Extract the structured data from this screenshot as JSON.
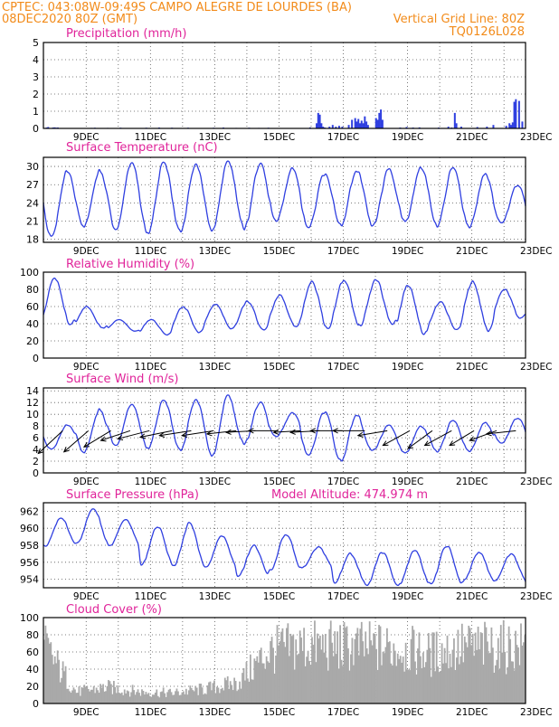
{
  "header": {
    "line1_left": "CPTEC:  043:08W-09:49S  CAMPO ALEGRE DE LOURDES (BA)",
    "line2_left": "08DEC2020 80Z (GMT)",
    "line2_right": "Vertical Grid Line: 80Z",
    "line3_right": "TQ0126L028"
  },
  "colors": {
    "header": "#f28b1a",
    "title": "#e0249a",
    "line": "#2f3fe0",
    "cloud": "#a9a9a9"
  },
  "x_ticks": [
    "9DEC",
    "11DEC",
    "13DEC",
    "15DEC",
    "17DEC",
    "19DEC",
    "21DEC",
    "23DEC"
  ],
  "chart_data": [
    {
      "type": "bar",
      "title": "Precipitation (mm/h)",
      "ylim": [
        0,
        5
      ],
      "yticks": [
        0,
        1,
        2,
        3,
        4,
        5
      ],
      "x_unit": "days since 08DEC2020 00Z",
      "x": [
        8.1,
        8.15,
        8.3,
        8.35,
        8.4,
        8.45,
        9.5,
        9.6,
        10.0,
        10.4,
        11.2,
        11.6,
        12.0,
        12.5,
        13.3,
        13.6,
        14.0,
        14.4,
        14.7,
        15.0,
        16.3,
        16.5,
        16.55,
        16.6,
        16.65,
        16.7,
        16.75,
        16.9,
        17.0,
        17.1,
        17.2,
        17.3,
        17.5,
        17.6,
        17.7,
        17.75,
        17.8,
        17.85,
        17.9,
        17.95,
        18.0,
        18.05,
        18.1,
        18.35,
        18.4,
        18.45,
        18.5,
        18.55,
        19.1,
        19.3,
        19.5,
        19.7,
        20.3,
        20.6,
        20.7,
        20.8,
        20.85,
        21.0,
        21.5,
        21.8,
        22.0,
        22.4,
        22.5,
        22.55,
        22.6,
        22.65,
        22.7,
        22.8,
        22.9
      ],
      "values": [
        0.05,
        0.08,
        0.05,
        0.06,
        0.04,
        0.05,
        0.03,
        0.04,
        0.03,
        0.04,
        0.04,
        0.05,
        0.04,
        0.04,
        0.04,
        0.05,
        0.03,
        0.04,
        0.03,
        0.04,
        0.06,
        0.3,
        0.9,
        0.8,
        0.3,
        0.1,
        0.05,
        0.1,
        0.2,
        0.1,
        0.15,
        0.1,
        0.2,
        0.5,
        0.6,
        0.4,
        0.55,
        0.3,
        0.45,
        0.3,
        0.7,
        0.4,
        0.2,
        0.6,
        0.5,
        0.9,
        1.1,
        0.5,
        0.05,
        0.08,
        0.05,
        0.06,
        0.05,
        0.1,
        0.05,
        0.9,
        0.3,
        0.1,
        0.08,
        0.1,
        0.2,
        0.15,
        0.3,
        0.2,
        0.35,
        1.55,
        1.7,
        1.6,
        0.4
      ]
    },
    {
      "type": "line",
      "title": "Surface Temperature (nC)",
      "ylim": [
        17.5,
        31.5
      ],
      "yticks": [
        18,
        21,
        24,
        27,
        30
      ],
      "x_unit": "days since 08DEC2020 00Z",
      "daily_min": [
        18.3,
        20.0,
        19.6,
        19.0,
        19.2,
        19.5,
        19.8,
        21.0,
        20.1,
        20.2,
        20.1,
        20.9,
        20.1,
        20.2,
        20.6
      ],
      "daily_max": [
        29.3,
        29.3,
        30.5,
        30.7,
        30.5,
        30.9,
        30.4,
        29.6,
        28.9,
        29.4,
        29.7,
        29.9,
        29.9,
        28.8,
        27.0
      ]
    },
    {
      "type": "line",
      "title": "Relative Humidity (%)",
      "ylim": [
        0,
        100
      ],
      "yticks": [
        0,
        20,
        40,
        60,
        80,
        100
      ],
      "x_unit": "days since 08DEC2020 00Z",
      "daily_max": [
        93,
        60,
        45,
        45,
        60,
        63,
        66,
        73,
        90,
        91,
        91,
        86,
        65,
        90,
        80
      ],
      "daily_min": [
        38,
        35,
        31,
        27,
        30,
        34,
        32,
        36,
        34,
        37,
        40,
        28,
        33,
        32,
        46
      ]
    },
    {
      "type": "line",
      "title": "Surface Wind (m/s)",
      "ylim": [
        0,
        14.5
      ],
      "yticks": [
        0,
        2,
        4,
        6,
        8,
        10,
        12,
        14
      ],
      "x_unit": "days since 08DEC2020 00Z",
      "daily_max": [
        8.2,
        10.8,
        11.6,
        12.4,
        12.6,
        13.3,
        12.0,
        10.2,
        10.5,
        10.0,
        8.2,
        8.0,
        9.0,
        8.6,
        9.4
      ],
      "daily_min": [
        4.0,
        3.4,
        4.7,
        4.2,
        3.8,
        3.0,
        5.0,
        6.2,
        3.2,
        2.0,
        3.8,
        3.4,
        3.6,
        3.8,
        5.0
      ],
      "vectors": [
        {
          "x": 8.6,
          "u": -1.0,
          "v": -1.4
        },
        {
          "x": 9.4,
          "u": -1.0,
          "v": -1.3
        },
        {
          "x": 10.1,
          "u": -1.1,
          "v": -1.0
        },
        {
          "x": 10.7,
          "u": -1.2,
          "v": -0.6
        },
        {
          "x": 11.3,
          "u": -1.3,
          "v": -0.5
        },
        {
          "x": 12.0,
          "u": -1.3,
          "v": -0.4
        },
        {
          "x": 12.6,
          "u": -1.3,
          "v": -0.3
        },
        {
          "x": 13.3,
          "u": -1.3,
          "v": -0.3
        },
        {
          "x": 14.0,
          "u": -1.2,
          "v": -0.2
        },
        {
          "x": 14.6,
          "u": -1.2,
          "v": -0.1
        },
        {
          "x": 15.3,
          "u": -1.2,
          "v": 0.0
        },
        {
          "x": 16.0,
          "u": -1.1,
          "v": -0.1
        },
        {
          "x": 16.6,
          "u": -1.2,
          "v": -0.1
        },
        {
          "x": 17.3,
          "u": -1.3,
          "v": 0.0
        },
        {
          "x": 18.0,
          "u": -1.3,
          "v": 0.0
        },
        {
          "x": 18.7,
          "u": -1.2,
          "v": -0.3
        },
        {
          "x": 19.4,
          "u": -1.1,
          "v": -0.9
        },
        {
          "x": 20.1,
          "u": -1.0,
          "v": -1.1
        },
        {
          "x": 20.7,
          "u": -1.1,
          "v": -0.9
        },
        {
          "x": 21.4,
          "u": -1.0,
          "v": -0.9
        },
        {
          "x": 22.1,
          "u": -1.1,
          "v": -0.6
        },
        {
          "x": 22.7,
          "u": -1.2,
          "v": -0.2
        }
      ]
    },
    {
      "type": "line",
      "title": "Surface Pressure (hPa)",
      "annotation": "Model Altitude: 474.974 m",
      "ylim": [
        953,
        963
      ],
      "yticks": [
        954,
        956,
        958,
        960,
        962
      ],
      "x_unit": "days since 08DEC2020 00Z",
      "daily_max": [
        961.2,
        962.4,
        961.0,
        960.2,
        960.6,
        959.1,
        957.9,
        959.3,
        957.8,
        957.0,
        957.2,
        957.5,
        957.9,
        957.2,
        957.0
      ],
      "daily_min": [
        957.9,
        958.2,
        957.9,
        955.7,
        955.5,
        955.4,
        954.3,
        955.0,
        955.4,
        953.5,
        953.2,
        953.3,
        953.4,
        953.8,
        953.8
      ]
    },
    {
      "type": "bar",
      "title": "Cloud Cover (%)",
      "ylim": [
        0,
        100
      ],
      "yticks": [
        0,
        20,
        40,
        60,
        80,
        100
      ],
      "x_unit": "days since 08DEC2020 00Z",
      "values_daily_env": [
        98,
        20,
        28,
        20,
        18,
        25,
        35,
        90,
        99,
        98,
        97,
        95,
        85,
        97,
        97
      ]
    }
  ]
}
